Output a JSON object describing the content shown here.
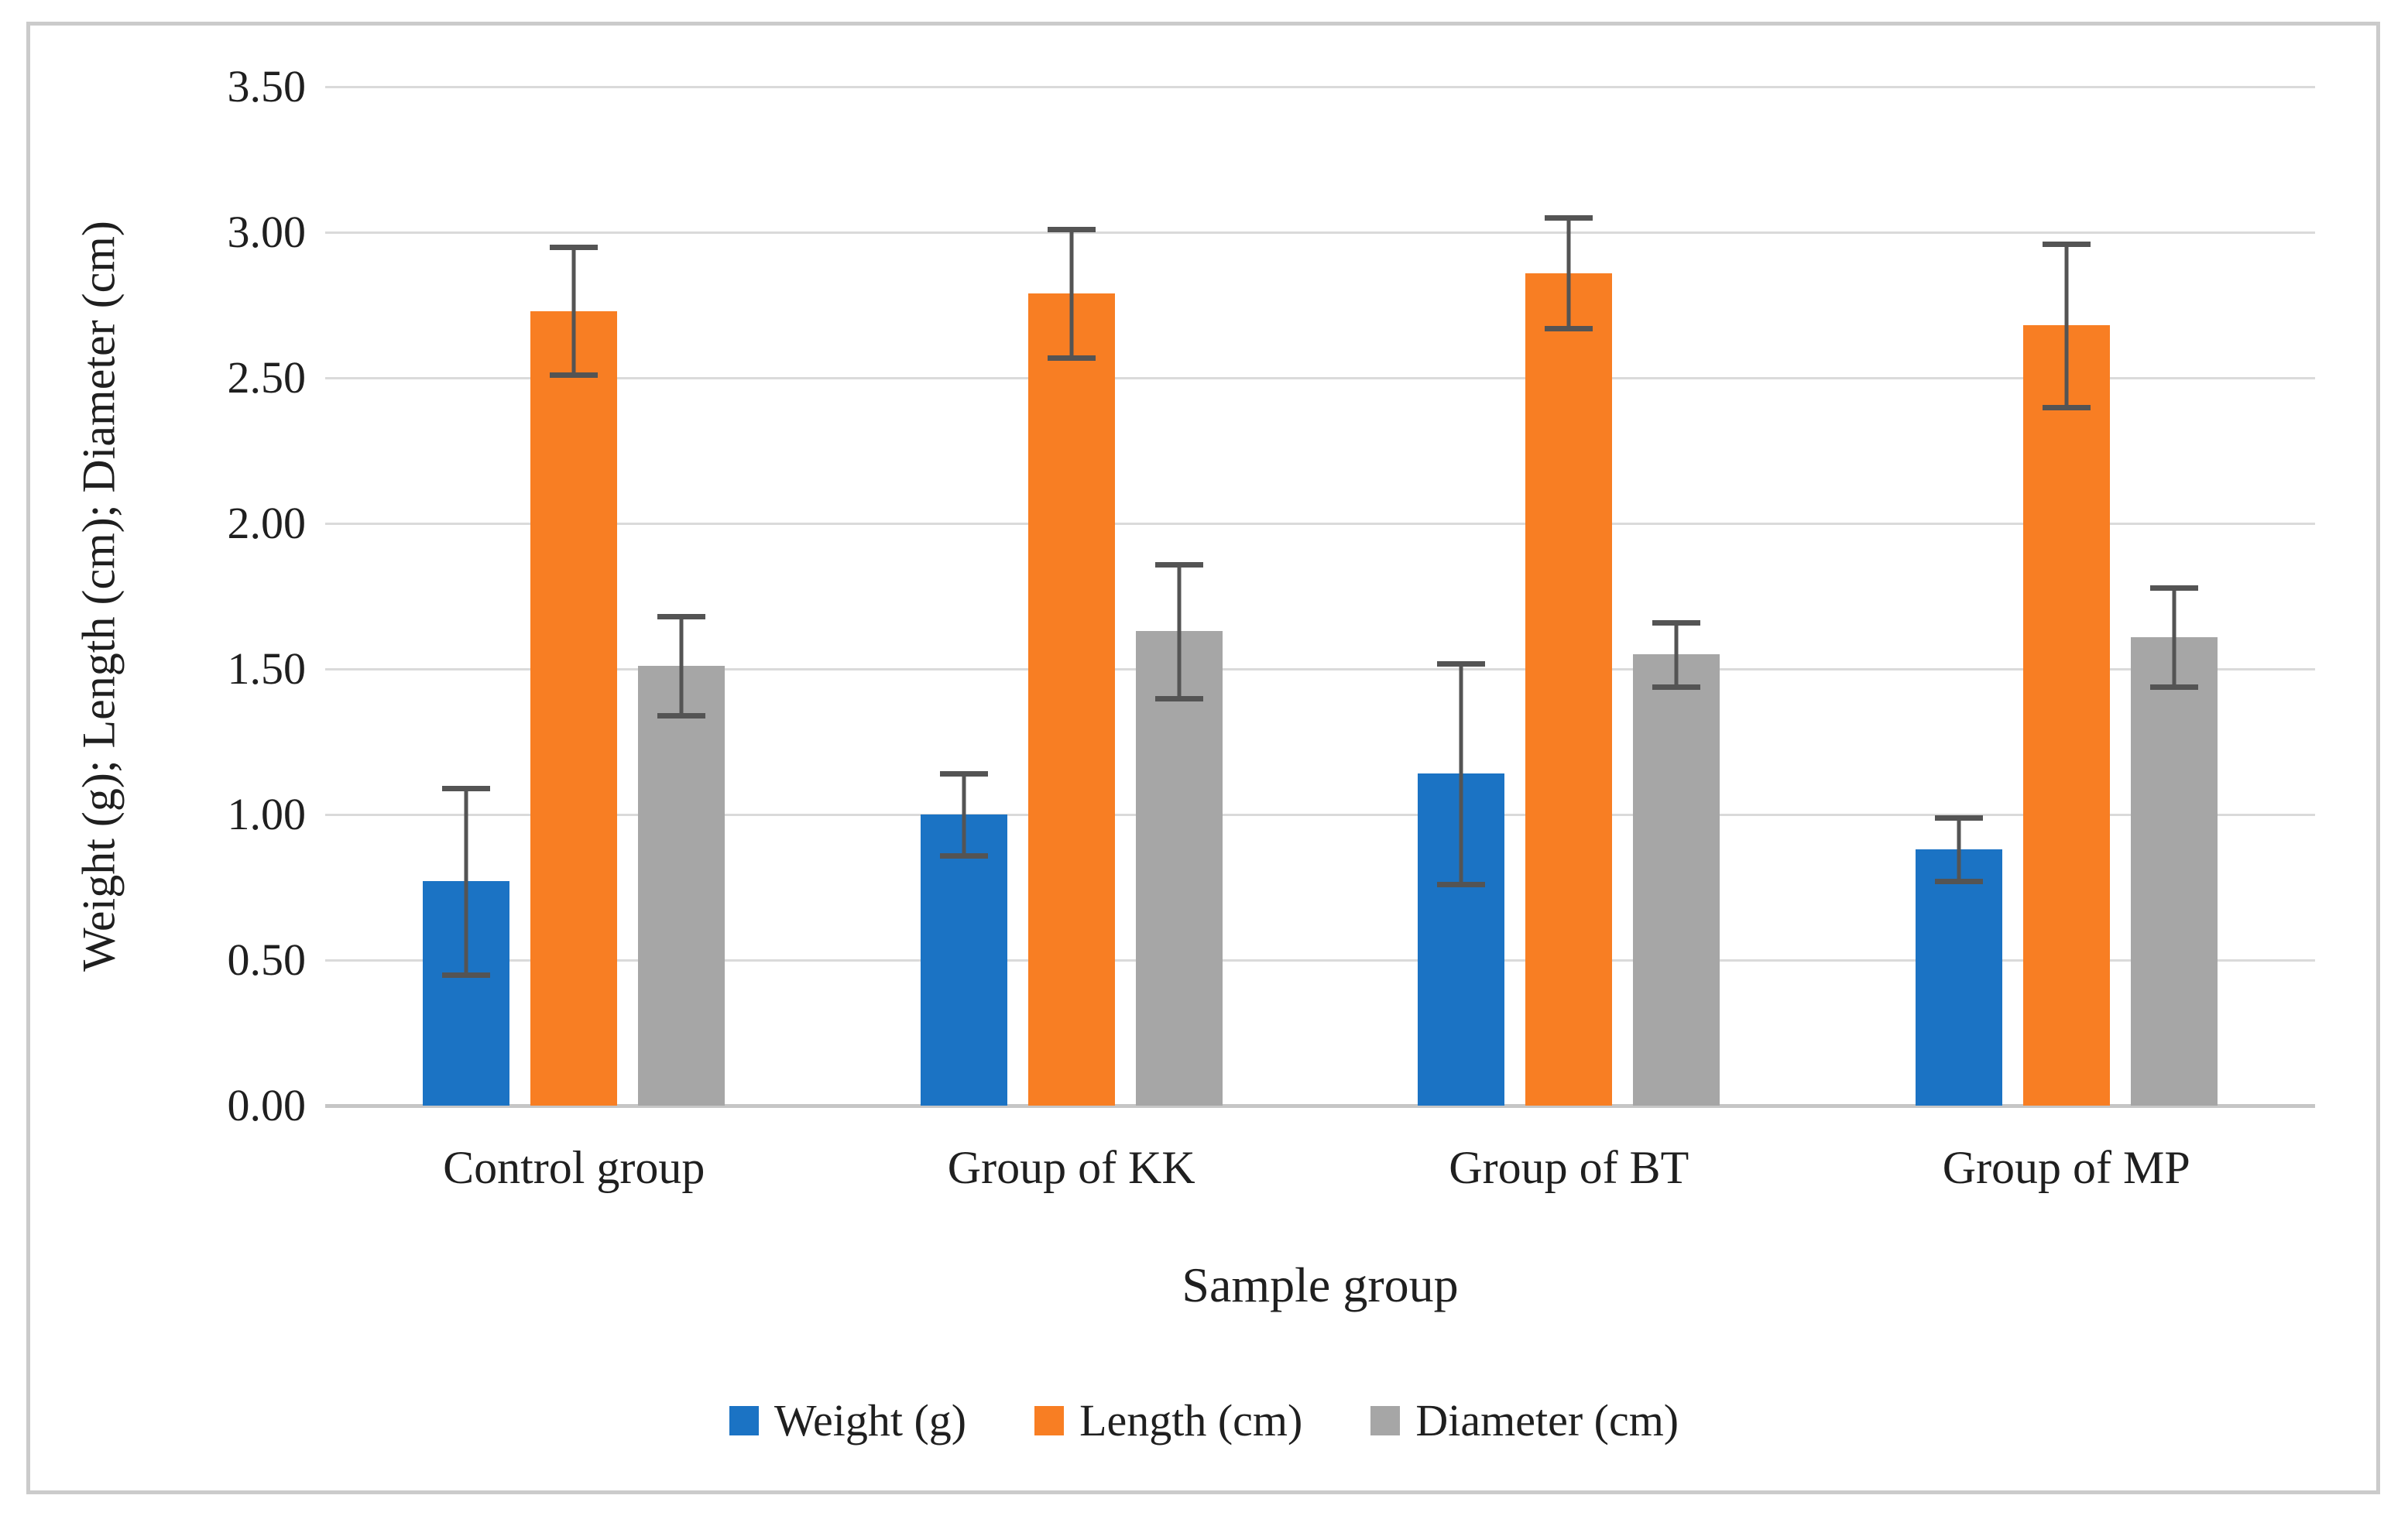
{
  "figure": {
    "frame_color": "#cbcbcb",
    "background": "#ffffff"
  },
  "chart_data": {
    "type": "bar",
    "title": "",
    "categories": [
      "Control group",
      "Group of KK",
      "Group of BT",
      "Group of MP"
    ],
    "series": [
      {
        "name": "Weight (g)",
        "color": "#1b73c4",
        "values": [
          0.77,
          1.0,
          1.14,
          0.88
        ],
        "errors": [
          0.32,
          0.14,
          0.38,
          0.11
        ]
      },
      {
        "name": "Length (cm)",
        "color": "#f87e23",
        "values": [
          2.73,
          2.79,
          2.86,
          2.68
        ],
        "errors": [
          0.22,
          0.22,
          0.19,
          0.28
        ]
      },
      {
        "name": "Diameter (cm)",
        "color": "#a6a6a6",
        "values": [
          1.51,
          1.63,
          1.55,
          1.61
        ],
        "errors": [
          0.17,
          0.23,
          0.11,
          0.17
        ]
      }
    ],
    "xlabel": "Sample group",
    "ylabel": "Weight (g); Length (cm); Diameter (cm)",
    "ylim": [
      0,
      3.5
    ],
    "ytick_labels": [
      "0.00",
      "0.50",
      "1.00",
      "1.50",
      "2.00",
      "2.50",
      "3.00",
      "3.50"
    ],
    "grid": true,
    "legend_position": "bottom",
    "error_bar_color": "#545454",
    "gridline_color": "#dadada",
    "axis_line_color": "#c6c6c6"
  }
}
